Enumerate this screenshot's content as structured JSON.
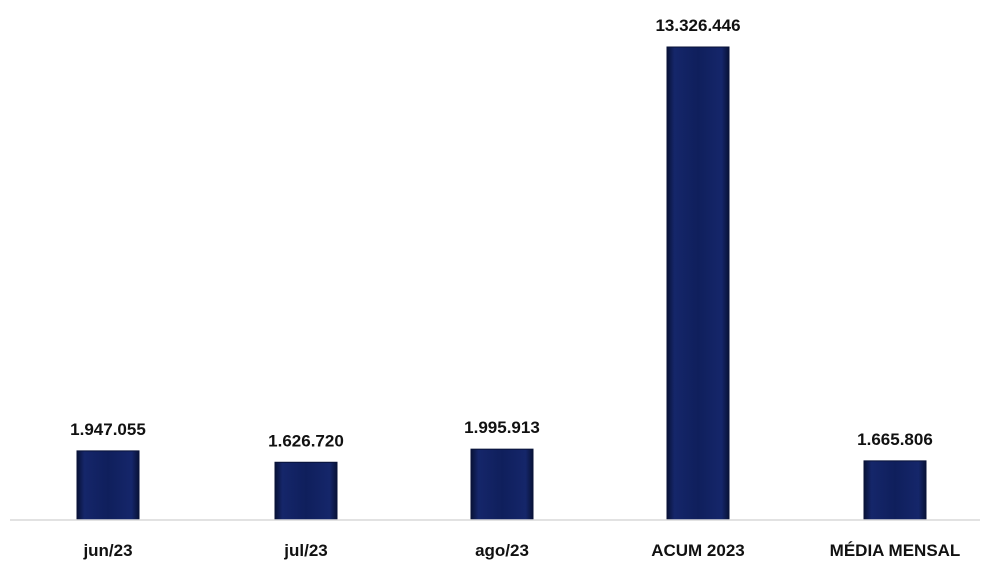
{
  "chart_data": {
    "type": "bar",
    "categories": [
      "jun/23",
      "jul/23",
      "ago/23",
      "ACUM 2023",
      "MÉDIA MENSAL"
    ],
    "values": [
      1947055,
      1626720,
      1995913,
      13326446,
      1665806
    ],
    "value_labels": [
      "1.947.055",
      "1.626.720",
      "1.995.913",
      "13.326.446",
      "1.665.806"
    ],
    "ylim": [
      0,
      14000000
    ],
    "grid": false,
    "legend": "none",
    "colors": {
      "bar_fill": "#0f1f5c",
      "bar_edge_light": "#2a3d80",
      "bar_edge_dark": "#081237",
      "axis": "#d9d9d9"
    }
  }
}
